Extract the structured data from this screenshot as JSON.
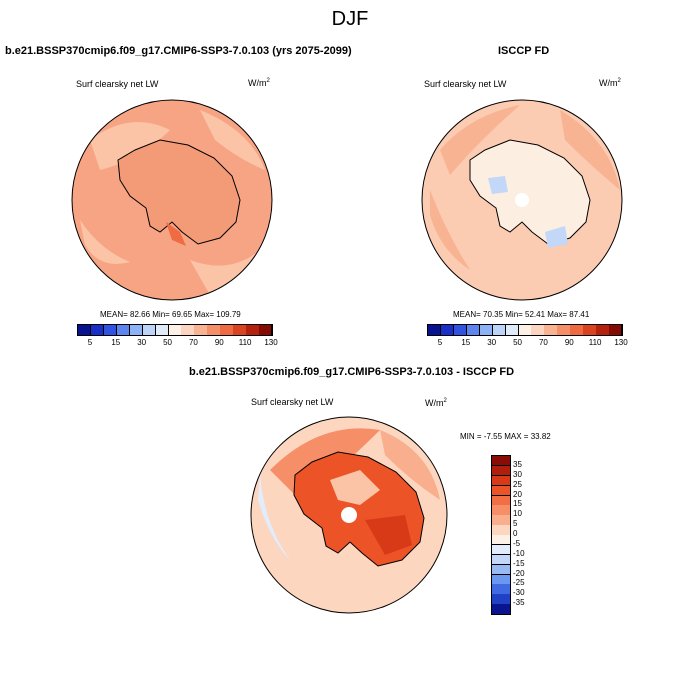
{
  "suptitle": "DJF",
  "panels": [
    {
      "title": "b.e21.BSSP370cmip6.f09_g17.CMIP6-SSP3-7.0.103 (yrs 2075-2099)",
      "variable": "Surf clearsky net LW",
      "units_base": "W/m",
      "units_exp": "2",
      "stats": "MEAN=  82.66  Min=  69.65  Max= 109.79",
      "dominant_color": "#f7a484"
    },
    {
      "title": "ISCCP FD",
      "variable": "Surf clearsky net LW",
      "units_base": "W/m",
      "units_exp": "2",
      "stats": "MEAN=  70.35  Min=  52.41  Max=  87.41",
      "dominant_color": "#fbcbb2"
    },
    {
      "title": "b.e21.BSSP370cmip6.f09_g17.CMIP6-SSP3-7.0.103 - ISCCP FD",
      "variable": "Surf clearsky net LW",
      "units_base": "W/m",
      "units_exp": "2",
      "stats": "MIN =  -7.55 MAX =  33.82",
      "dominant_color": "#f26b44"
    }
  ],
  "colorbar_abs": {
    "labels": [
      "5",
      "15",
      "30",
      "50",
      "70",
      "90",
      "110",
      "130"
    ],
    "colors": [
      "#08138f",
      "#1a2fc8",
      "#3154e0",
      "#5c86ee",
      "#8db2f5",
      "#bcd4f8",
      "#e0ebfa",
      "#fdf0e6",
      "#fbd5bf",
      "#f8b393",
      "#f58f68",
      "#ee6a43",
      "#d9431f",
      "#b4220d",
      "#850a05"
    ]
  },
  "colorbar_diff": {
    "labels": [
      "35",
      "30",
      "25",
      "20",
      "15",
      "10",
      "5",
      "0",
      "-5",
      "-10",
      "-15",
      "-20",
      "-25",
      "-30",
      "-35"
    ],
    "colors": [
      "#8a0c06",
      "#b21e0d",
      "#d83a18",
      "#ec5428",
      "#f26f46",
      "#f68e67",
      "#f9ae8e",
      "#fcd6bf",
      "#fdf1e6",
      "#e2ecfb",
      "#c3d7f8",
      "#98baf4",
      "#6b98ee",
      "#3f6ae2",
      "#2041c4",
      "#0a148e"
    ]
  }
}
